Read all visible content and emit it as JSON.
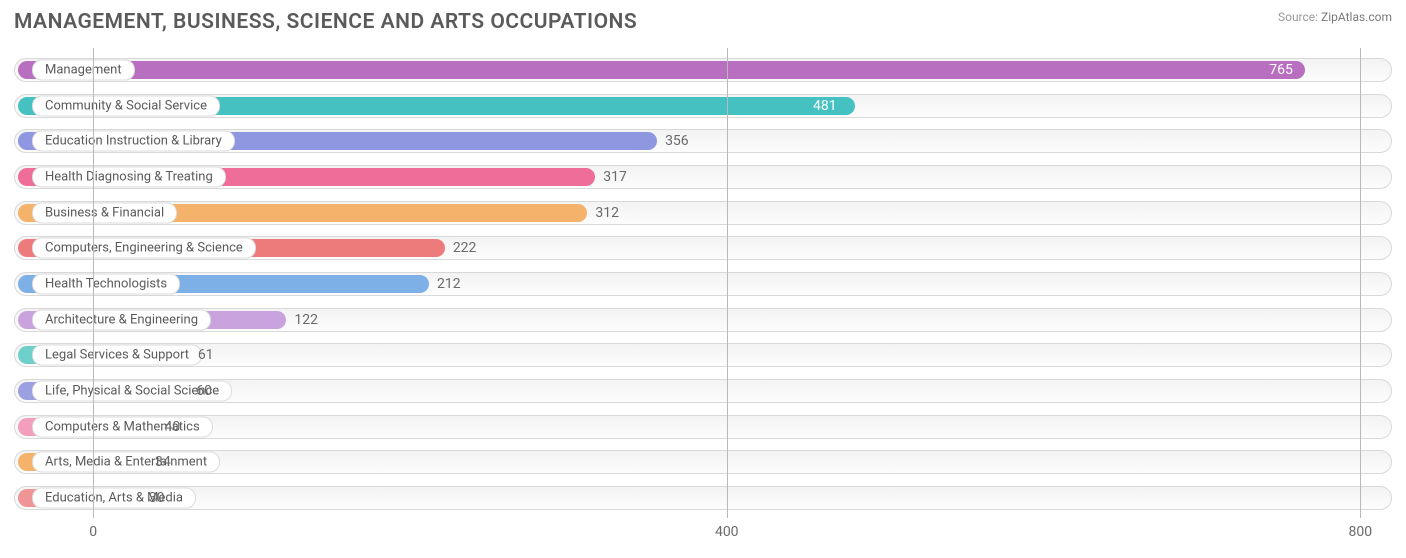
{
  "title": "MANAGEMENT, BUSINESS, SCIENCE AND ARTS OCCUPATIONS",
  "source_label": "Source:",
  "source_name": "ZipAtlas.com",
  "chart": {
    "type": "bar-horizontal",
    "background_color": "#ffffff",
    "track_border": "#d9d9d9",
    "track_fill": "#f6f6f6",
    "grid_color": "#b9b9b9",
    "label_fontsize": 13,
    "value_fontsize": 14,
    "title_fontsize": 21,
    "text_color": "#5a5a5a",
    "axis_fontsize": 14,
    "bar_radius": 10,
    "track_radius": 14,
    "x_axis": {
      "ticks": [
        0,
        400,
        800
      ],
      "min": -50,
      "max": 820
    },
    "bars": [
      {
        "label": "Management",
        "value": 765,
        "color": "#b86fc0",
        "value_color": "#ffffff"
      },
      {
        "label": "Community & Social Service",
        "value": 481,
        "color": "#46c1c1",
        "value_color": "#ffffff"
      },
      {
        "label": "Education Instruction & Library",
        "value": 356,
        "color": "#8e97e0",
        "value_color": "#6a6a6a"
      },
      {
        "label": "Health Diagnosing & Treating",
        "value": 317,
        "color": "#ef6e99",
        "value_color": "#6a6a6a"
      },
      {
        "label": "Business & Financial",
        "value": 312,
        "color": "#f4b26a",
        "value_color": "#6a6a6a"
      },
      {
        "label": "Computers, Engineering & Science",
        "value": 222,
        "color": "#ee7b7b",
        "value_color": "#6a6a6a"
      },
      {
        "label": "Health Technologists",
        "value": 212,
        "color": "#7eb0e8",
        "value_color": "#6a6a6a"
      },
      {
        "label": "Architecture & Engineering",
        "value": 122,
        "color": "#c8a3de",
        "value_color": "#6a6a6a"
      },
      {
        "label": "Legal Services & Support",
        "value": 61,
        "color": "#6fd0c9",
        "value_color": "#6a6a6a"
      },
      {
        "label": "Life, Physical & Social Science",
        "value": 60,
        "color": "#9aa0e0",
        "value_color": "#6a6a6a"
      },
      {
        "label": "Computers & Mathematics",
        "value": 40,
        "color": "#f39ebd",
        "value_color": "#6a6a6a"
      },
      {
        "label": "Arts, Media & Entertainment",
        "value": 34,
        "color": "#f4b26a",
        "value_color": "#6a6a6a"
      },
      {
        "label": "Education, Arts & Media",
        "value": 30,
        "color": "#ef9595",
        "value_color": "#6a6a6a"
      }
    ]
  }
}
